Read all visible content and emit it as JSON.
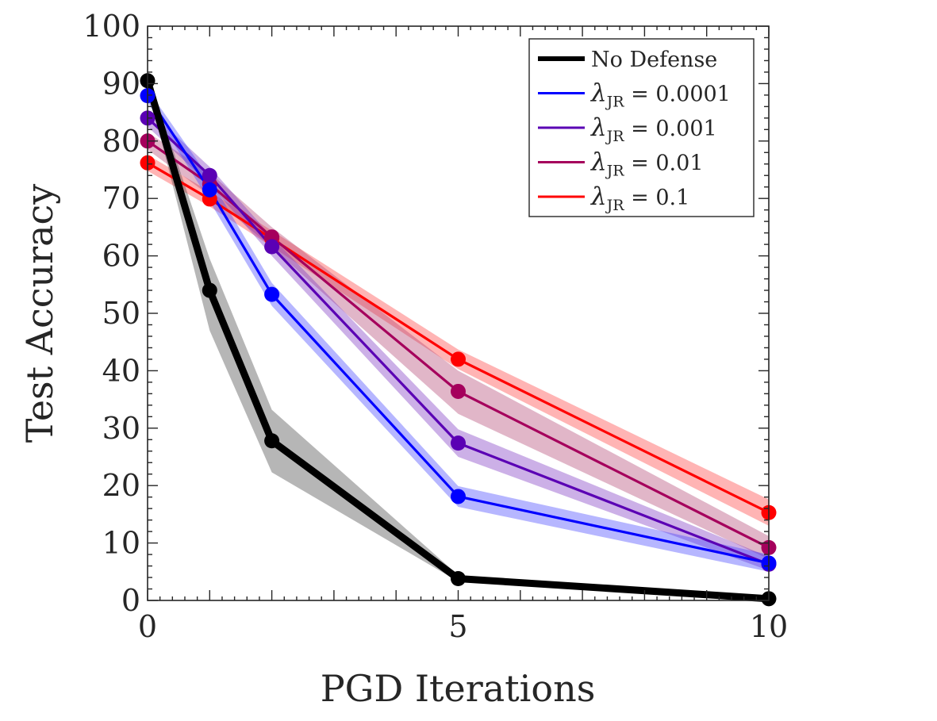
{
  "chart_data": {
    "type": "line",
    "title": "",
    "xlabel": "PGD Iterations",
    "ylabel": "Test Accuracy",
    "xlim": [
      0,
      10
    ],
    "ylim": [
      0,
      100
    ],
    "x_ticks": [
      "0",
      "5",
      "10"
    ],
    "y_ticks": [
      "0",
      "10",
      "20",
      "30",
      "40",
      "50",
      "60",
      "70",
      "80",
      "90",
      "100"
    ],
    "x": [
      0,
      1,
      2,
      5,
      10
    ],
    "legend_position": "top-right",
    "grid": false,
    "series": [
      {
        "name": "λJR = 0.1",
        "symbol": "λ",
        "subscript": "JR",
        "value_text": " = 0.1",
        "color": "#ff0000",
        "band_color": "#ff3b3b",
        "values": [
          76.2,
          69.9,
          63.0,
          42.0,
          15.3
        ],
        "band_low": [
          74.8,
          68.6,
          61.6,
          40.3,
          13.0
        ],
        "band_high": [
          77.6,
          71.2,
          64.4,
          43.7,
          17.6
        ]
      },
      {
        "name": "λJR = 0.01",
        "symbol": "λ",
        "subscript": "JR",
        "value_text": " = 0.01",
        "color": "#a5005c",
        "band_color": "#b0406e",
        "values": [
          80.0,
          72.5,
          63.3,
          36.4,
          9.2
        ],
        "band_low": [
          78.5,
          70.5,
          61.5,
          32.5,
          7.2
        ],
        "band_high": [
          81.5,
          74.5,
          65.0,
          40.0,
          11.2
        ]
      },
      {
        "name": "λJR = 0.001",
        "symbol": "λ",
        "subscript": "JR",
        "value_text": " = 0.001",
        "color": "#5a00b4",
        "band_color": "#7a30c0",
        "values": [
          84.0,
          74.0,
          61.6,
          27.4,
          6.3
        ],
        "band_low": [
          82.5,
          72.5,
          60.0,
          25.0,
          5.2
        ],
        "band_high": [
          85.5,
          75.5,
          63.3,
          29.8,
          7.6
        ]
      },
      {
        "name": "λJR = 0.0001",
        "symbol": "λ",
        "subscript": "JR",
        "value_text": " = 0.0001",
        "color": "#0000ff",
        "band_color": "#4040ff",
        "values": [
          87.9,
          71.5,
          53.3,
          18.1,
          6.5
        ],
        "band_low": [
          86.8,
          69.5,
          51.3,
          16.3,
          5.0
        ],
        "band_high": [
          89.0,
          73.5,
          55.3,
          19.9,
          8.0
        ]
      },
      {
        "name": "No Defense",
        "symbol": "",
        "subscript": "",
        "value_text": "No Defense",
        "color": "#000000",
        "band_color": "#404040",
        "values": [
          90.5,
          54.0,
          27.8,
          3.8,
          0.3
        ],
        "band_low": [
          89.5,
          47.0,
          22.3,
          3.3,
          0.2
        ],
        "band_high": [
          91.5,
          59.5,
          33.2,
          4.4,
          0.5
        ]
      }
    ],
    "legend_order": [
      "No Defense",
      "λJR = 0.0001",
      "λJR = 0.001",
      "λJR = 0.01",
      "λJR = 0.1"
    ]
  }
}
